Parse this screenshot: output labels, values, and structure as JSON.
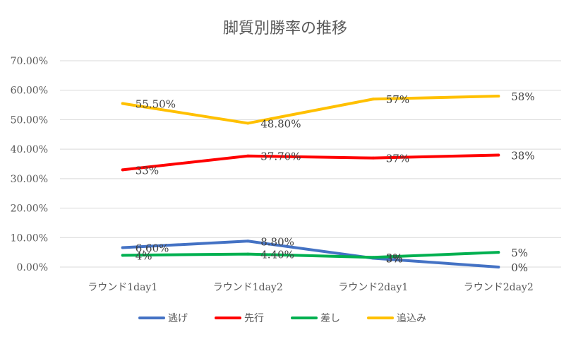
{
  "chart_data": {
    "type": "line",
    "title": "脚質別勝率の推移",
    "xlabel": "",
    "ylabel": "",
    "categories": [
      "ラウンド1day1",
      "ラウンド1day2",
      "ラウンド2day1",
      "ラウンド2day2"
    ],
    "y_ticks": [
      "0.00%",
      "10.00%",
      "20.00%",
      "30.00%",
      "40.00%",
      "50.00%",
      "60.00%",
      "70.00%"
    ],
    "ylim": [
      0,
      70
    ],
    "grid": true,
    "legend_position": "bottom",
    "series": [
      {
        "name": "逃げ",
        "color": "#4472C4",
        "values": [
          6.6,
          8.8,
          3,
          0
        ],
        "labels": [
          "6.60%",
          "8.80%",
          "3%",
          "0%"
        ]
      },
      {
        "name": "先行",
        "color": "#FF0000",
        "values": [
          33,
          37.7,
          37,
          38
        ],
        "labels": [
          "33%",
          "37.70%",
          "37%",
          "38%"
        ]
      },
      {
        "name": "差し",
        "color": "#00B050",
        "values": [
          4,
          4.4,
          3.3,
          5
        ],
        "labels": [
          "4%",
          "4.40%",
          "3%",
          "5%"
        ]
      },
      {
        "name": "追込み",
        "color": "#FFC000",
        "values": [
          55.5,
          48.8,
          57,
          58
        ],
        "labels": [
          "55.50%",
          "48.80%",
          "57%",
          "58%"
        ]
      }
    ]
  }
}
